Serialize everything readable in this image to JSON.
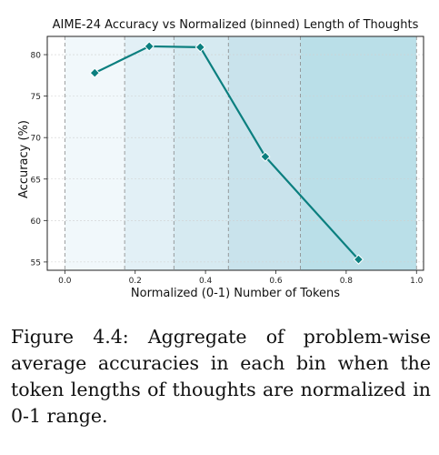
{
  "chart_data": {
    "type": "line",
    "title": "AIME-24 Accuracy vs Normalized (binned) Length of Thoughts",
    "xlabel": "Normalized (0-1) Number of Tokens",
    "ylabel": "Accuracy (%)",
    "xlim": [
      -0.05,
      1.02
    ],
    "ylim": [
      54,
      82.2
    ],
    "xticks": [
      0.0,
      0.2,
      0.4,
      0.6,
      0.8,
      1.0
    ],
    "xtick_labels": [
      "0.0",
      "0.2",
      "0.4",
      "0.6",
      "0.8",
      "1.0"
    ],
    "yticks": [
      55,
      60,
      65,
      70,
      75,
      80
    ],
    "ytick_labels": [
      "55",
      "60",
      "65",
      "70",
      "75",
      "80"
    ],
    "bin_edges": [
      0.0,
      0.17,
      0.31,
      0.465,
      0.67,
      1.0
    ],
    "bin_colors": [
      "#f1f8fb",
      "#e2f0f6",
      "#d6eaf1",
      "#c9e3ec",
      "#badfe8"
    ],
    "series": [
      {
        "x": [
          0.085,
          0.24,
          0.385,
          0.57,
          0.835
        ],
        "y": [
          77.8,
          81.0,
          80.9,
          67.7,
          55.3
        ],
        "color": "#0b7f7f",
        "marker": "diamond"
      }
    ],
    "grid": true
  },
  "caption": {
    "text": "Figure 4.4: Aggregate of problem-wise average accuracies in each bin when the token lengths of thoughts are normalized in 0-1 range."
  }
}
